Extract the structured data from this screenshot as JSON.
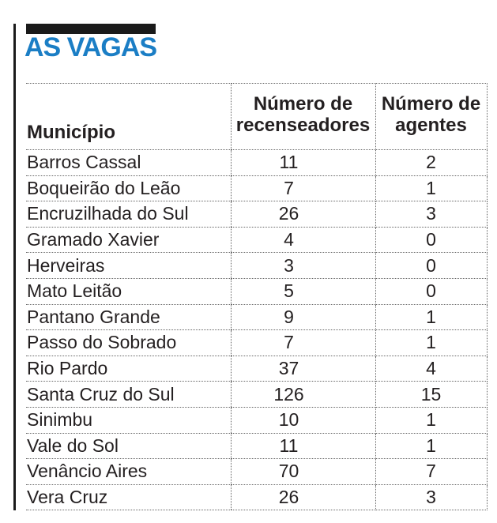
{
  "header": {
    "title": "AS VAGAS",
    "colors": {
      "accent": "#1b7ec5",
      "text": "#231f20",
      "kicker_bar": "#1a1a1a",
      "grid": "#666666"
    }
  },
  "chart_data": {
    "type": "table",
    "title": "AS VAGAS",
    "columns": [
      "Município",
      "Número de recenseadores",
      "Número de agentes"
    ],
    "rows": [
      [
        "Barros Cassal",
        11,
        2
      ],
      [
        "Boqueirão do Leão",
        7,
        1
      ],
      [
        "Encruzilhada do Sul",
        26,
        3
      ],
      [
        "Gramado Xavier",
        4,
        0
      ],
      [
        "Herveiras",
        3,
        0
      ],
      [
        "Mato Leitão",
        5,
        0
      ],
      [
        "Pantano Grande",
        9,
        1
      ],
      [
        "Passo do Sobrado",
        7,
        1
      ],
      [
        "Rio Pardo",
        37,
        4
      ],
      [
        "Santa Cruz do Sul",
        126,
        15
      ],
      [
        "Sinimbu",
        10,
        1
      ],
      [
        "Vale do Sol",
        11,
        1
      ],
      [
        "Venâncio Aires",
        70,
        7
      ],
      [
        "Vera Cruz",
        26,
        3
      ]
    ],
    "layout": {
      "grid": "dotted",
      "legend": "none",
      "value_columns_align": "center",
      "label_column_align": "left"
    }
  }
}
